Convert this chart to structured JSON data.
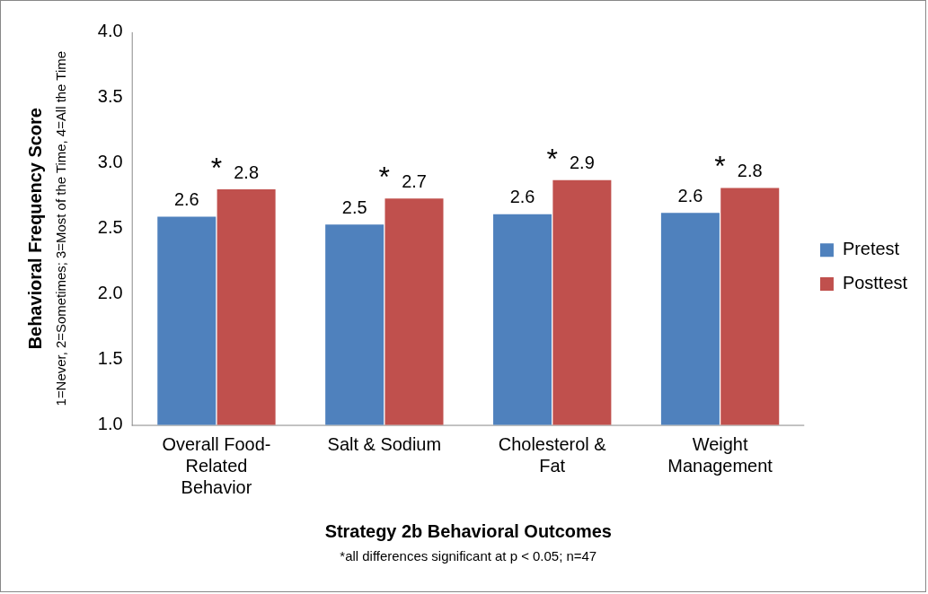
{
  "chart_data": {
    "type": "bar",
    "xlabel": "Strategy 2b Behavioral Outcomes",
    "ylabel": "Behavioral Frequency Score",
    "categories": [
      "Overall Food-Related Behavior",
      "Salt & Sodium",
      "Cholesterol & Fat",
      "Weight Management"
    ],
    "series": [
      {
        "name": "Pretest",
        "color": "#4f81bd",
        "values": [
          2.59,
          2.53,
          2.61,
          2.62
        ],
        "value_labels": [
          "2.6",
          "2.5",
          "2.6",
          "2.6"
        ]
      },
      {
        "name": "Posttest",
        "color": "#c0504d",
        "values": [
          2.8,
          2.73,
          2.87,
          2.81
        ],
        "value_labels": [
          "2.8",
          "2.7",
          "2.9",
          "2.8"
        ]
      }
    ],
    "ylim": [
      1,
      4
    ],
    "yticks": [
      {
        "value": 1,
        "label": "1.0"
      },
      {
        "value": 1.5,
        "label": "1.5"
      },
      {
        "value": 2,
        "label": "2.0"
      },
      {
        "value": 2.5,
        "label": "2.5"
      },
      {
        "value": 3,
        "label": "3.0"
      },
      {
        "value": 3.5,
        "label": "3.5"
      },
      {
        "value": 4,
        "label": "4.0"
      }
    ],
    "grid": false,
    "legend": "right",
    "annotations": [
      "1=Never, 2=Sometimes; 3=Most of the Time, 4=All the Time",
      "*",
      "*",
      "*",
      "*",
      "*all differences significant at p < 0.05; n=47"
    ]
  }
}
